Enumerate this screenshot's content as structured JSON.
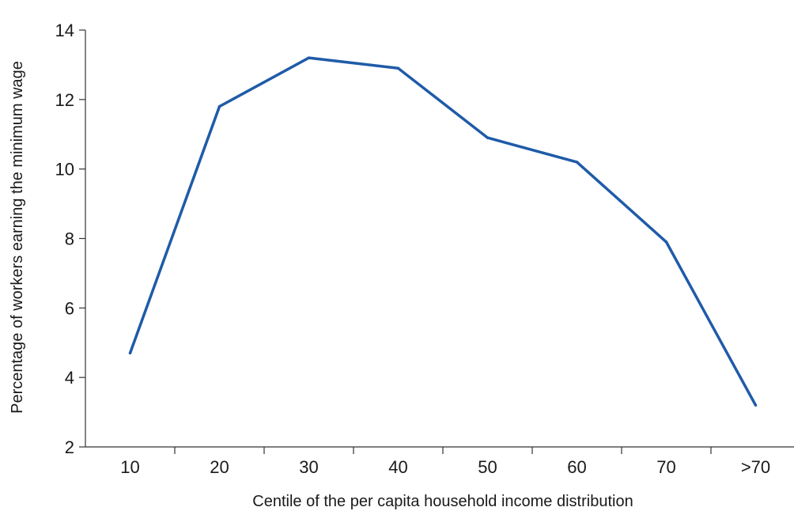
{
  "chart_data": {
    "type": "line",
    "categories": [
      "10",
      "20",
      "30",
      "40",
      "50",
      "60",
      "70",
      ">70"
    ],
    "series": [
      {
        "values": [
          4.7,
          11.8,
          13.2,
          12.9,
          10.9,
          10.2,
          7.9,
          3.2
        ]
      }
    ],
    "xlabel": "Centile of the per capita household income distribution",
    "ylabel": "Percentage of workers earning the minimum wage",
    "ylim": [
      2,
      14
    ],
    "yticks": [
      "2",
      "4",
      "6",
      "8",
      "10",
      "12",
      "14"
    ],
    "grid": false,
    "line_color": "#1f5ba8"
  }
}
